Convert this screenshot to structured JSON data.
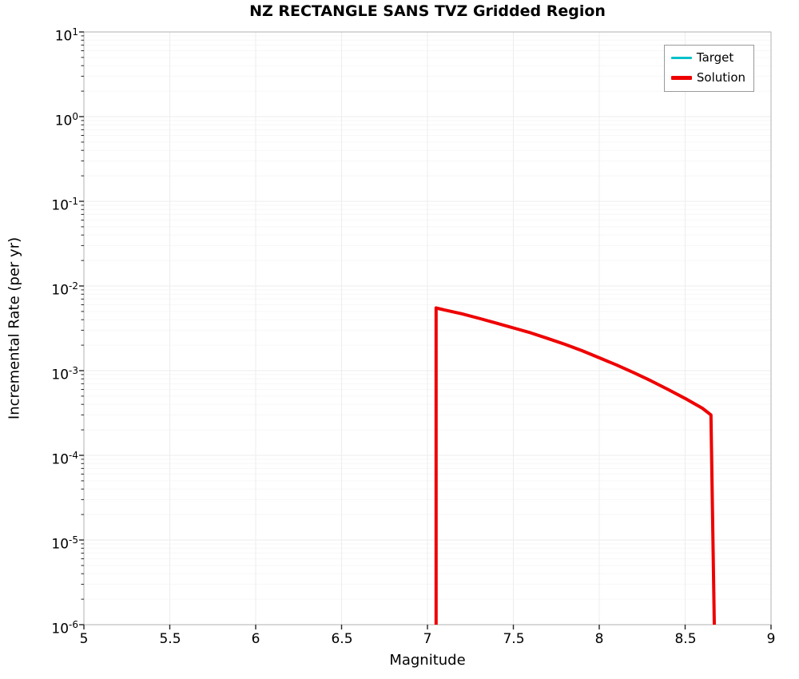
{
  "chart_data": {
    "type": "line",
    "title": "NZ RECTANGLE SANS TVZ Gridded Region",
    "xlabel": "Magnitude",
    "ylabel": "Incremental Rate (per yr)",
    "xlim": [
      5,
      9
    ],
    "y_scale": "log",
    "ylim_exp": [
      -6,
      1
    ],
    "grid": true,
    "legend_position": "upper right",
    "x_ticks": [
      {
        "v": 5,
        "label": "5"
      },
      {
        "v": 5.5,
        "label": "5.5"
      },
      {
        "v": 6,
        "label": "6"
      },
      {
        "v": 6.5,
        "label": "6.5"
      },
      {
        "v": 7,
        "label": "7"
      },
      {
        "v": 7.5,
        "label": "7.5"
      },
      {
        "v": 8,
        "label": "8"
      },
      {
        "v": 8.5,
        "label": "8.5"
      },
      {
        "v": 9,
        "label": "9"
      }
    ],
    "y_tick_exponents": [
      1,
      0,
      -1,
      -2,
      -3,
      -4,
      -5,
      -6
    ],
    "series": [
      {
        "name": "Target",
        "color": "#00c2cb",
        "width": 2.5,
        "points": [
          [
            7.05,
            1e-06
          ],
          [
            7.05,
            0.0055
          ],
          [
            7.1,
            0.0052
          ],
          [
            7.2,
            0.0047
          ],
          [
            7.3,
            0.00415
          ],
          [
            7.4,
            0.00365
          ],
          [
            7.5,
            0.0032
          ],
          [
            7.6,
            0.0028
          ],
          [
            7.7,
            0.0024
          ],
          [
            7.8,
            0.00205
          ],
          [
            7.9,
            0.00172
          ],
          [
            8.0,
            0.00142
          ],
          [
            8.1,
            0.00117
          ],
          [
            8.2,
            0.00095
          ],
          [
            8.3,
            0.00076
          ],
          [
            8.4,
            0.0006
          ],
          [
            8.5,
            0.00047
          ],
          [
            8.6,
            0.00036
          ],
          [
            8.65,
            0.0003
          ],
          [
            8.67,
            1e-06
          ]
        ]
      },
      {
        "name": "Solution",
        "color": "#ee0000",
        "width": 4,
        "points": [
          [
            7.05,
            1e-06
          ],
          [
            7.05,
            0.0055
          ],
          [
            7.1,
            0.0052
          ],
          [
            7.2,
            0.0047
          ],
          [
            7.3,
            0.00415
          ],
          [
            7.4,
            0.00365
          ],
          [
            7.5,
            0.0032
          ],
          [
            7.6,
            0.0028
          ],
          [
            7.7,
            0.0024
          ],
          [
            7.8,
            0.00205
          ],
          [
            7.9,
            0.00172
          ],
          [
            8.0,
            0.00142
          ],
          [
            8.1,
            0.00117
          ],
          [
            8.2,
            0.00095
          ],
          [
            8.3,
            0.00076
          ],
          [
            8.4,
            0.0006
          ],
          [
            8.5,
            0.00047
          ],
          [
            8.6,
            0.00036
          ],
          [
            8.65,
            0.0003
          ],
          [
            8.67,
            1e-06
          ]
        ]
      }
    ],
    "colors": {
      "major_grid": "#ededed",
      "minor_grid": "#f7f7f7",
      "axis_border": "#b0b0b0",
      "tick": "#262626"
    }
  }
}
